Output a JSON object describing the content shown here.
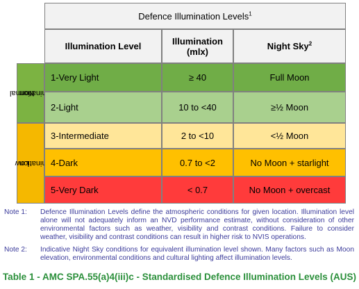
{
  "table": {
    "title": "Defence Illumination Levels",
    "title_sup": "1",
    "headers": {
      "level": "Illumination Level",
      "illumination_line1": "Illumination",
      "illumination_line2": "(mlx)",
      "night_sky": "Night Sky",
      "night_sky_sup": "2"
    },
    "groups": {
      "normal_line1": "Normal",
      "normal_line2": "Illumination",
      "low_line1": "Low",
      "low_line2": "Illumination"
    },
    "rows": [
      {
        "level": "1-Very Light",
        "illumination": "≥ 40",
        "night_sky": "Full Moon"
      },
      {
        "level": "2-Light",
        "illumination": "10 to <40",
        "night_sky": "≥½ Moon"
      },
      {
        "level": "3-Intermediate",
        "illumination": "2 to <10",
        "night_sky": "<½ Moon"
      },
      {
        "level": "4-Dark",
        "illumination": "0.7 to <2",
        "night_sky": "No Moon + starlight"
      },
      {
        "level": "5-Very Dark",
        "illumination": "< 0.7",
        "night_sky": "No Moon + overcast"
      }
    ],
    "colors": {
      "normal_group": "#7cb342",
      "low_group": "#f5b800",
      "row1": "#70ad47",
      "row2": "#a9d08e",
      "row3": "#ffe699",
      "row4": "#ffc000",
      "row5": "#ff3b3b"
    }
  },
  "notes": [
    {
      "label": "Note 1:",
      "text": "Defence Illumination Levels define the atmospheric conditions for given location. Illumination level alone will not adequately inform an NVD performance estimate, without consideration of other environmental factors such as weather, visibility and contrast conditions. Failure to consider weather, visibility and contrast conditions can result in higher risk to NVIS operations."
    },
    {
      "label": "Note 2:",
      "text": "Indicative Night Sky conditions for equivalent illumination level shown. Many factors such as Moon elevation, environmental conditions and cultural lighting affect illumination levels."
    }
  ],
  "caption": "Table 1 - AMC SPA.55(a)4(iii)c - Standardised Defence Illumination Levels (AUS)"
}
